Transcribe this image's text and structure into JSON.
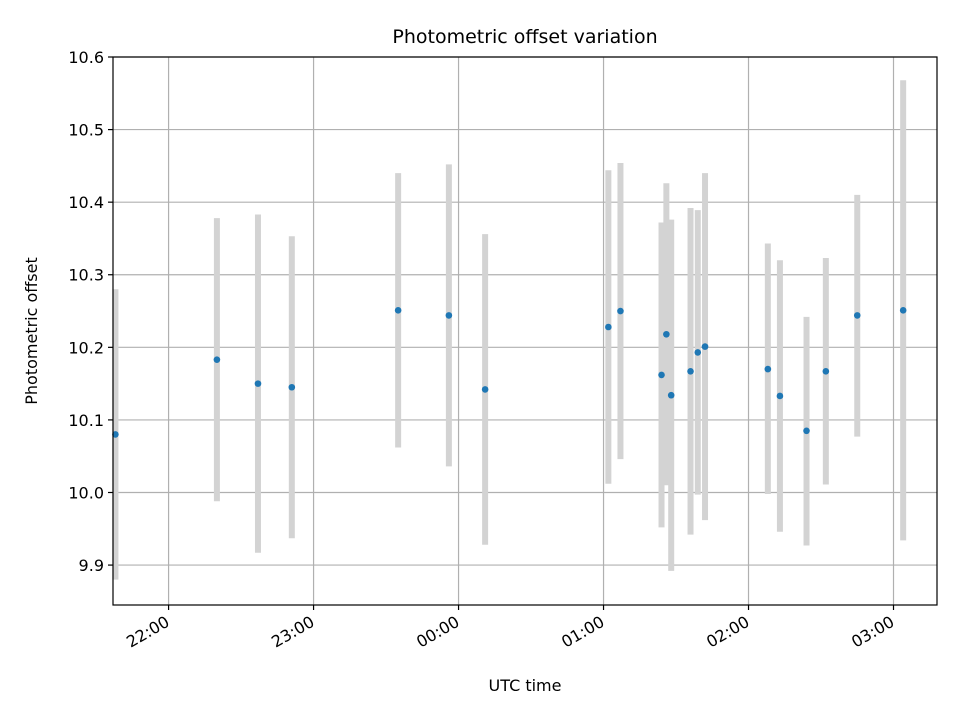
{
  "chart_data": {
    "type": "scatter",
    "title": "Photometric offset variation",
    "xlabel": "UTC time",
    "ylabel": "Photometric offset",
    "ylim": [
      9.845,
      10.6
    ],
    "xlim": [
      "21:37",
      "03:18"
    ],
    "x_ticks": [
      "22:00",
      "23:00",
      "00:00",
      "01:00",
      "02:00",
      "03:00"
    ],
    "y_ticks": [
      "9.9",
      "10.0",
      "10.1",
      "10.2",
      "10.3",
      "10.4",
      "10.5",
      "10.6"
    ],
    "grid": true,
    "error_bar_color": "#d3d3d3",
    "point_color": "#1f77b4",
    "points": [
      {
        "x": "21:38",
        "y": 10.08,
        "yerr_low": 9.88,
        "yerr_high": 10.28
      },
      {
        "x": "22:20",
        "y": 10.183,
        "yerr_low": 9.988,
        "yerr_high": 10.378
      },
      {
        "x": "22:37",
        "y": 10.15,
        "yerr_low": 9.917,
        "yerr_high": 10.383
      },
      {
        "x": "22:51",
        "y": 10.145,
        "yerr_low": 9.937,
        "yerr_high": 10.353
      },
      {
        "x": "23:35",
        "y": 10.251,
        "yerr_low": 10.062,
        "yerr_high": 10.44
      },
      {
        "x": "23:56",
        "y": 10.244,
        "yerr_low": 10.036,
        "yerr_high": 10.452
      },
      {
        "x": "00:11",
        "y": 10.142,
        "yerr_low": 9.928,
        "yerr_high": 10.356
      },
      {
        "x": "01:02",
        "y": 10.228,
        "yerr_low": 10.012,
        "yerr_high": 10.444
      },
      {
        "x": "01:07",
        "y": 10.25,
        "yerr_low": 10.046,
        "yerr_high": 10.454
      },
      {
        "x": "01:24",
        "y": 10.162,
        "yerr_low": 9.952,
        "yerr_high": 10.372
      },
      {
        "x": "01:26",
        "y": 10.218,
        "yerr_low": 10.01,
        "yerr_high": 10.426
      },
      {
        "x": "01:28",
        "y": 10.134,
        "yerr_low": 9.892,
        "yerr_high": 10.376
      },
      {
        "x": "01:36",
        "y": 10.167,
        "yerr_low": 9.942,
        "yerr_high": 10.392
      },
      {
        "x": "01:39",
        "y": 10.193,
        "yerr_low": 9.997,
        "yerr_high": 10.389
      },
      {
        "x": "01:42",
        "y": 10.201,
        "yerr_low": 9.962,
        "yerr_high": 10.44
      },
      {
        "x": "02:08",
        "y": 10.17,
        "yerr_low": 9.998,
        "yerr_high": 10.343
      },
      {
        "x": "02:13",
        "y": 10.133,
        "yerr_low": 9.946,
        "yerr_high": 10.32
      },
      {
        "x": "02:24",
        "y": 10.085,
        "yerr_low": 9.927,
        "yerr_high": 10.242
      },
      {
        "x": "02:32",
        "y": 10.167,
        "yerr_low": 10.011,
        "yerr_high": 10.323
      },
      {
        "x": "02:45",
        "y": 10.244,
        "yerr_low": 10.077,
        "yerr_high": 10.41
      },
      {
        "x": "03:04",
        "y": 10.251,
        "yerr_low": 9.934,
        "yerr_high": 10.568
      }
    ]
  }
}
